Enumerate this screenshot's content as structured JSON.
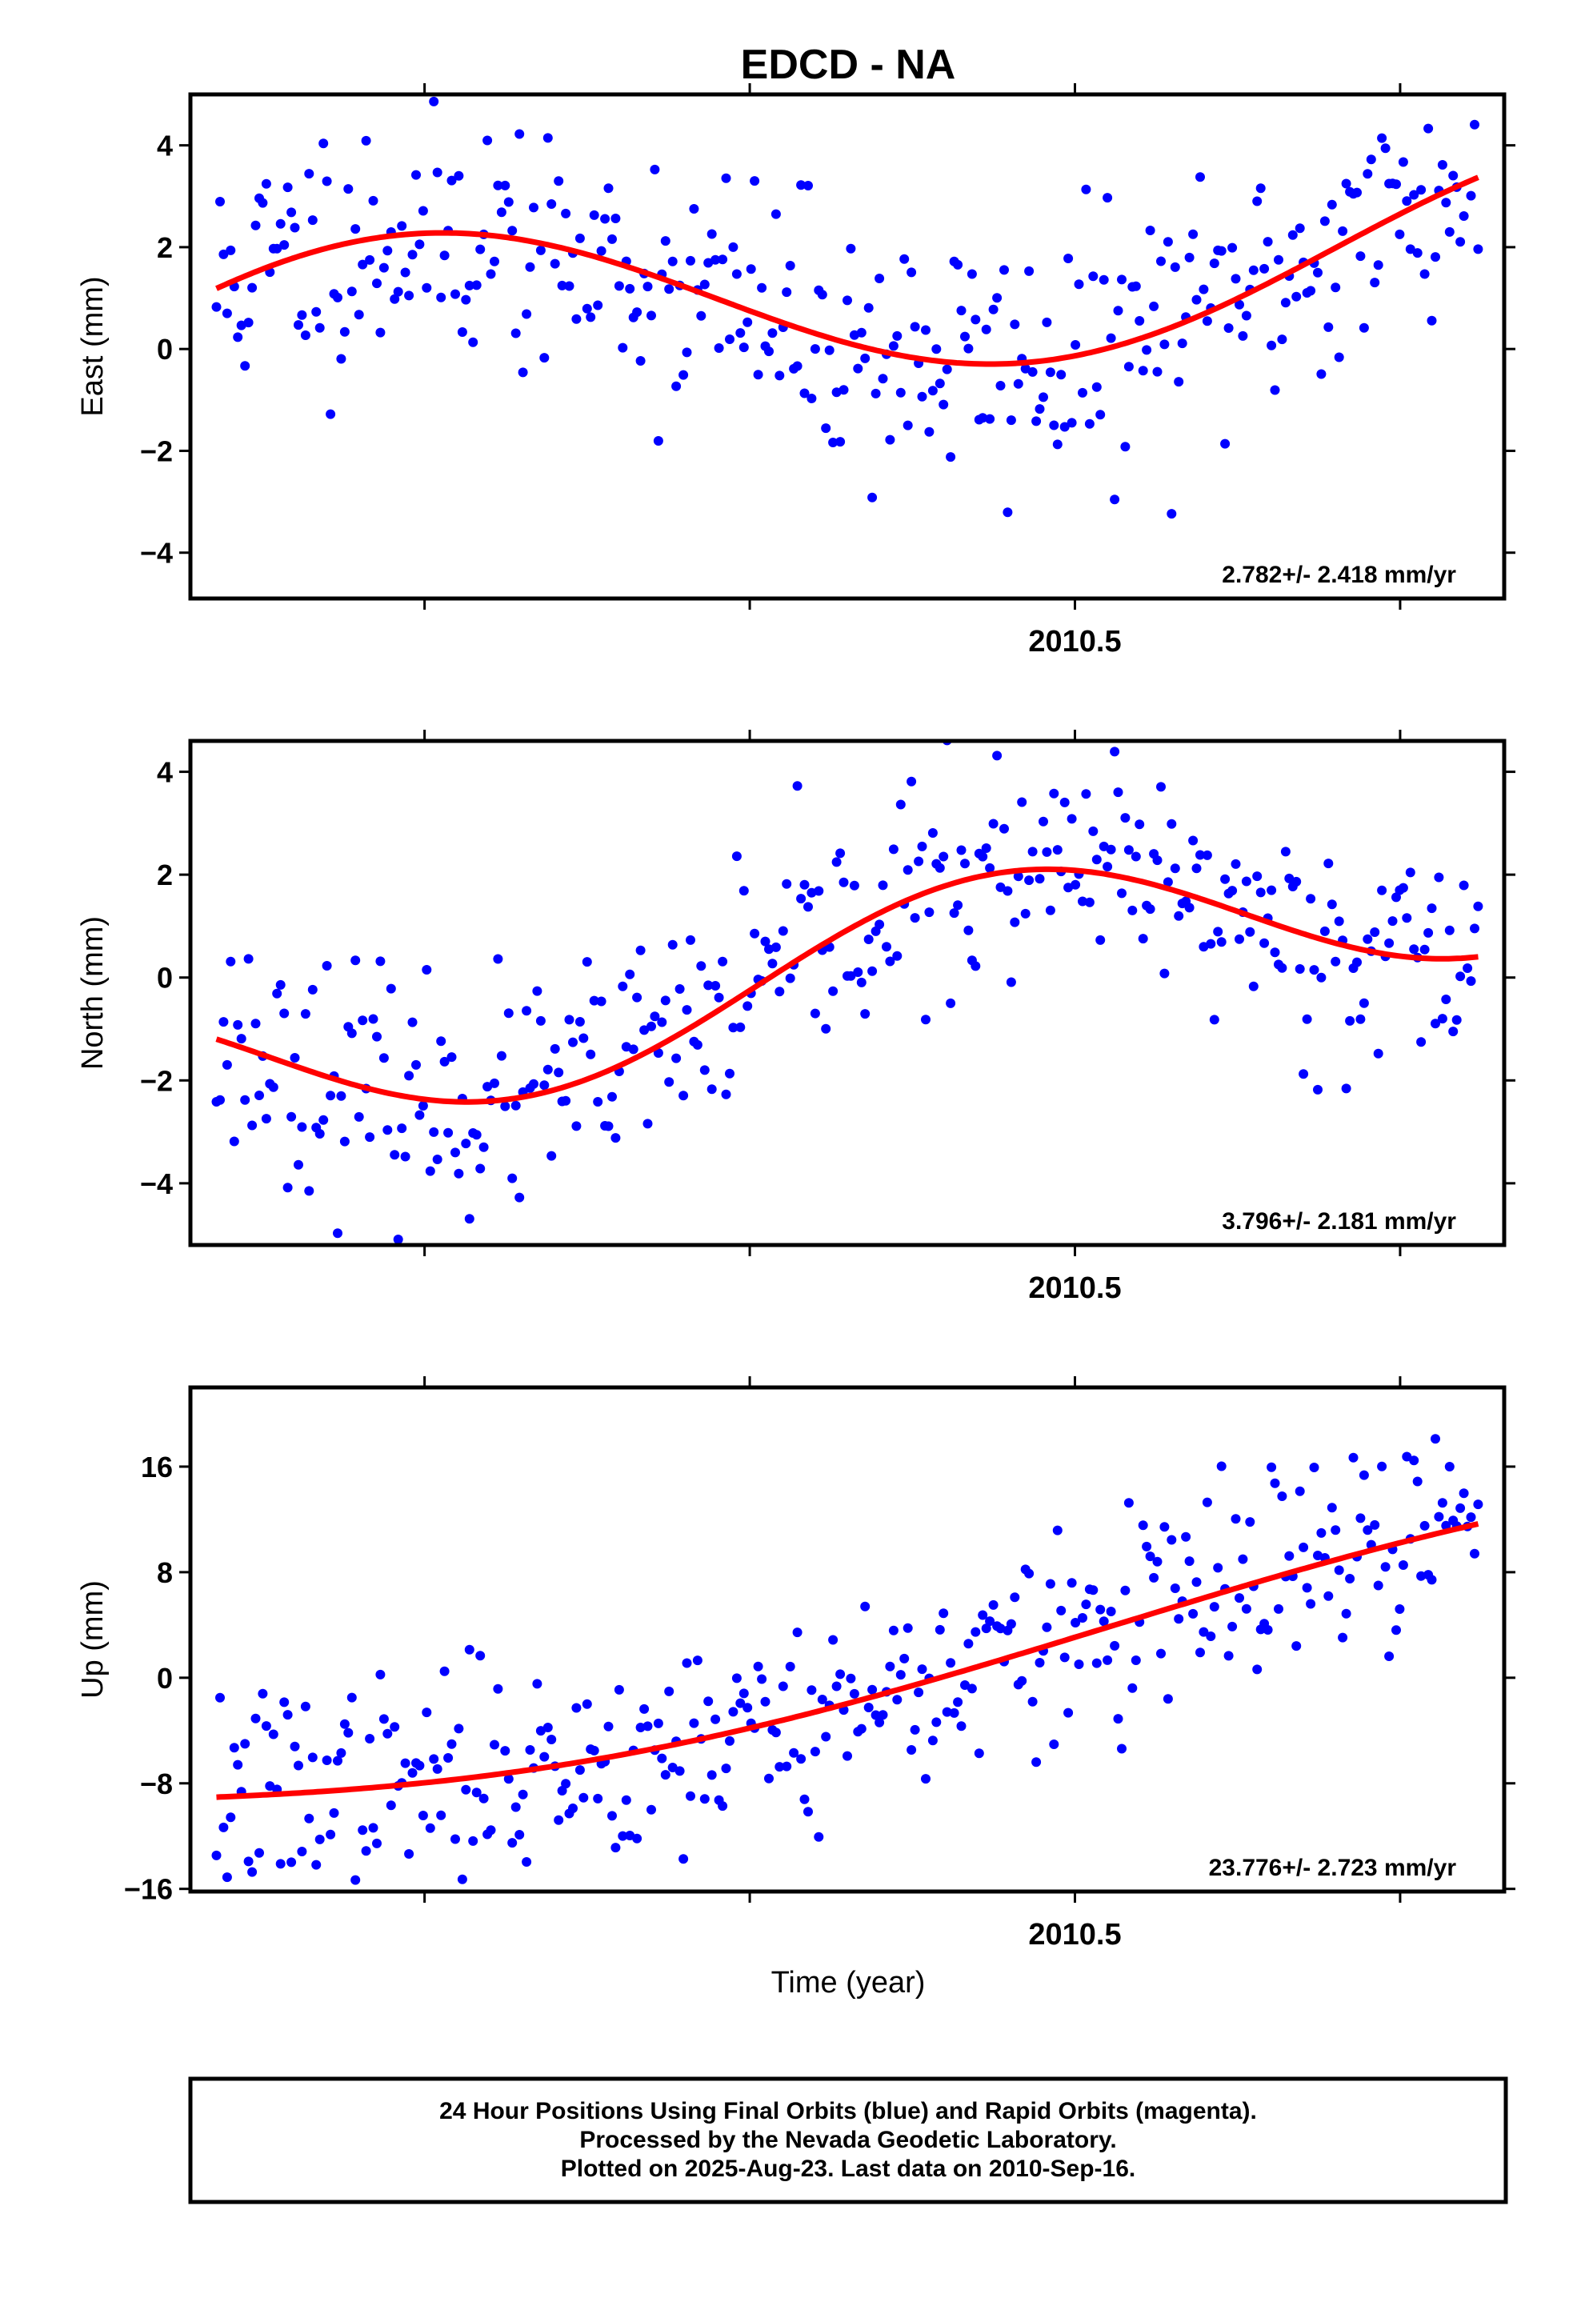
{
  "title": "EDCD - NA",
  "colors": {
    "points": "#0000ff",
    "fit": "#ff0000",
    "frame": "#000000"
  },
  "chart_data": [
    {
      "type": "scatter",
      "ylabel": "East (mm)",
      "xtick_label": "2010.5",
      "xtick_value": 2010.5,
      "xlim": [
        2009.82,
        2010.83
      ],
      "ylim": [
        -4.9,
        5.0
      ],
      "yticks": [
        4,
        2,
        0,
        -2,
        -4
      ],
      "ytick_labels": [
        "4",
        "2",
        "0",
        "−2",
        "−4"
      ],
      "rate_label": "2.782+/- 2.418 mm/yr",
      "fit": {
        "offset": 0.2,
        "trend": 2.0,
        "amp": 1.75,
        "phase": 0.6,
        "period": 0.95,
        "t_start": 2009.84,
        "t_end": 2010.81
      },
      "scatter_sd": 1.3,
      "seed": 11
    },
    {
      "type": "scatter",
      "ylabel": "North (mm)",
      "xtick_label": "2010.5",
      "xtick_value": 2010.5,
      "xlim": [
        2009.82,
        2010.83
      ],
      "ylim": [
        -5.2,
        4.6
      ],
      "yticks": [
        4,
        2,
        0,
        -2,
        -4
      ],
      "ytick_labels": [
        "4",
        "2",
        "0",
        "−2",
        "−4"
      ],
      "rate_label": "3.796+/- 2.181 mm/yr",
      "fit": {
        "offset": -1.7,
        "trend": 3.6,
        "amp": 1.5,
        "phase": 2.8,
        "period": 0.75,
        "t_start": 2009.84,
        "t_end": 2010.81
      },
      "scatter_sd": 1.1,
      "seed": 23
    },
    {
      "type": "scatter",
      "ylabel": "Up (mm)",
      "xtick_label": "2010.5",
      "xtick_value": 2010.5,
      "xlim": [
        2009.82,
        2010.83
      ],
      "ylim": [
        -16.2,
        22.0
      ],
      "yticks": [
        16,
        8,
        0,
        -8,
        -16
      ],
      "ytick_labels": [
        "16",
        "8",
        "0",
        "−8",
        "−16"
      ],
      "rate_label": "23.776+/- 2.723 mm/yr",
      "fit": {
        "offset": -7.5,
        "trend": 16.0,
        "amp": 3.5,
        "phase": 3.6,
        "period": 1.6,
        "t_start": 2009.84,
        "t_end": 2010.81
      },
      "scatter_sd": 4.0,
      "seed": 37
    }
  ],
  "xlabel": "Time (year)",
  "footer": [
    "24 Hour Positions Using Final Orbits (blue) and Rapid Orbits (magenta).",
    "Processed by the Nevada Geodetic Laboratory.",
    "Plotted on 2025-Aug-23. Last data on 2010-Sep-16."
  ]
}
